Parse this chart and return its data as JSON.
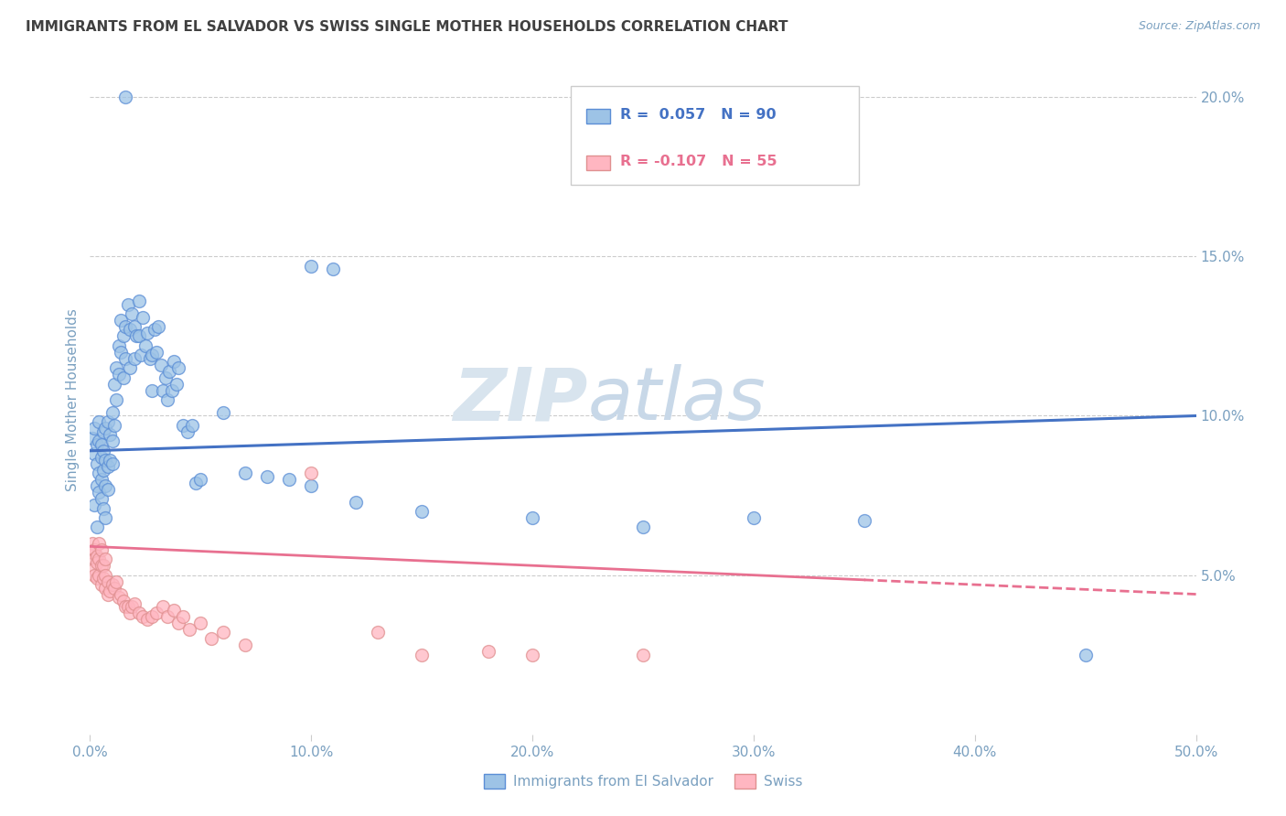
{
  "title": "IMMIGRANTS FROM EL SALVADOR VS SWISS SINGLE MOTHER HOUSEHOLDS CORRELATION CHART",
  "source": "Source: ZipAtlas.com",
  "ylabel": "Single Mother Households",
  "xlim": [
    0.0,
    0.5
  ],
  "ylim": [
    0.0,
    0.21
  ],
  "xticks": [
    0.0,
    0.1,
    0.2,
    0.3,
    0.4,
    0.5
  ],
  "xticklabels": [
    "0.0%",
    "10.0%",
    "20.0%",
    "30.0%",
    "40.0%",
    "50.0%"
  ],
  "yticks": [
    0.05,
    0.1,
    0.15,
    0.2
  ],
  "yticklabels": [
    "5.0%",
    "10.0%",
    "15.0%",
    "20.0%"
  ],
  "blue_R": 0.057,
  "blue_N": 90,
  "pink_R": -0.107,
  "pink_N": 55,
  "legend_label_blue": "Immigrants from El Salvador",
  "legend_label_pink": "Swiss",
  "watermark": "ZIPatlas",
  "blue_scatter": [
    [
      0.001,
      0.093
    ],
    [
      0.002,
      0.088
    ],
    [
      0.002,
      0.072
    ],
    [
      0.002,
      0.096
    ],
    [
      0.003,
      0.085
    ],
    [
      0.003,
      0.078
    ],
    [
      0.003,
      0.091
    ],
    [
      0.003,
      0.065
    ],
    [
      0.004,
      0.092
    ],
    [
      0.004,
      0.082
    ],
    [
      0.004,
      0.076
    ],
    [
      0.004,
      0.098
    ],
    [
      0.005,
      0.091
    ],
    [
      0.005,
      0.08
    ],
    [
      0.005,
      0.087
    ],
    [
      0.005,
      0.074
    ],
    [
      0.006,
      0.095
    ],
    [
      0.006,
      0.083
    ],
    [
      0.006,
      0.089
    ],
    [
      0.006,
      0.071
    ],
    [
      0.007,
      0.096
    ],
    [
      0.007,
      0.086
    ],
    [
      0.007,
      0.078
    ],
    [
      0.007,
      0.068
    ],
    [
      0.008,
      0.098
    ],
    [
      0.008,
      0.084
    ],
    [
      0.008,
      0.077
    ],
    [
      0.009,
      0.094
    ],
    [
      0.009,
      0.086
    ],
    [
      0.01,
      0.101
    ],
    [
      0.01,
      0.092
    ],
    [
      0.01,
      0.085
    ],
    [
      0.011,
      0.11
    ],
    [
      0.011,
      0.097
    ],
    [
      0.012,
      0.115
    ],
    [
      0.012,
      0.105
    ],
    [
      0.013,
      0.122
    ],
    [
      0.013,
      0.113
    ],
    [
      0.014,
      0.13
    ],
    [
      0.014,
      0.12
    ],
    [
      0.015,
      0.125
    ],
    [
      0.015,
      0.112
    ],
    [
      0.016,
      0.128
    ],
    [
      0.016,
      0.118
    ],
    [
      0.017,
      0.135
    ],
    [
      0.018,
      0.127
    ],
    [
      0.018,
      0.115
    ],
    [
      0.019,
      0.132
    ],
    [
      0.02,
      0.128
    ],
    [
      0.02,
      0.118
    ],
    [
      0.021,
      0.125
    ],
    [
      0.022,
      0.136
    ],
    [
      0.022,
      0.125
    ],
    [
      0.023,
      0.119
    ],
    [
      0.024,
      0.131
    ],
    [
      0.025,
      0.122
    ],
    [
      0.026,
      0.126
    ],
    [
      0.027,
      0.118
    ],
    [
      0.028,
      0.119
    ],
    [
      0.028,
      0.108
    ],
    [
      0.029,
      0.127
    ],
    [
      0.03,
      0.12
    ],
    [
      0.031,
      0.128
    ],
    [
      0.032,
      0.116
    ],
    [
      0.033,
      0.108
    ],
    [
      0.034,
      0.112
    ],
    [
      0.035,
      0.105
    ],
    [
      0.036,
      0.114
    ],
    [
      0.037,
      0.108
    ],
    [
      0.038,
      0.117
    ],
    [
      0.039,
      0.11
    ],
    [
      0.04,
      0.115
    ],
    [
      0.042,
      0.097
    ],
    [
      0.044,
      0.095
    ],
    [
      0.046,
      0.097
    ],
    [
      0.048,
      0.079
    ],
    [
      0.05,
      0.08
    ],
    [
      0.06,
      0.101
    ],
    [
      0.07,
      0.082
    ],
    [
      0.08,
      0.081
    ],
    [
      0.09,
      0.08
    ],
    [
      0.1,
      0.078
    ],
    [
      0.12,
      0.073
    ],
    [
      0.15,
      0.07
    ],
    [
      0.2,
      0.068
    ],
    [
      0.25,
      0.065
    ],
    [
      0.3,
      0.068
    ],
    [
      0.35,
      0.067
    ],
    [
      0.45,
      0.025
    ],
    [
      0.016,
      0.2
    ],
    [
      0.1,
      0.147
    ],
    [
      0.11,
      0.146
    ]
  ],
  "pink_scatter": [
    [
      0.001,
      0.06
    ],
    [
      0.001,
      0.057
    ],
    [
      0.002,
      0.058
    ],
    [
      0.002,
      0.055
    ],
    [
      0.002,
      0.052
    ],
    [
      0.002,
      0.05
    ],
    [
      0.003,
      0.056
    ],
    [
      0.003,
      0.054
    ],
    [
      0.003,
      0.049
    ],
    [
      0.004,
      0.06
    ],
    [
      0.004,
      0.055
    ],
    [
      0.004,
      0.05
    ],
    [
      0.005,
      0.058
    ],
    [
      0.005,
      0.053
    ],
    [
      0.005,
      0.047
    ],
    [
      0.006,
      0.049
    ],
    [
      0.006,
      0.053
    ],
    [
      0.007,
      0.055
    ],
    [
      0.007,
      0.05
    ],
    [
      0.007,
      0.046
    ],
    [
      0.008,
      0.048
    ],
    [
      0.008,
      0.044
    ],
    [
      0.009,
      0.045
    ],
    [
      0.01,
      0.047
    ],
    [
      0.011,
      0.046
    ],
    [
      0.012,
      0.048
    ],
    [
      0.013,
      0.043
    ],
    [
      0.014,
      0.044
    ],
    [
      0.015,
      0.042
    ],
    [
      0.016,
      0.04
    ],
    [
      0.017,
      0.04
    ],
    [
      0.018,
      0.038
    ],
    [
      0.019,
      0.04
    ],
    [
      0.02,
      0.041
    ],
    [
      0.022,
      0.038
    ],
    [
      0.024,
      0.037
    ],
    [
      0.026,
      0.036
    ],
    [
      0.028,
      0.037
    ],
    [
      0.03,
      0.038
    ],
    [
      0.033,
      0.04
    ],
    [
      0.035,
      0.037
    ],
    [
      0.038,
      0.039
    ],
    [
      0.04,
      0.035
    ],
    [
      0.042,
      0.037
    ],
    [
      0.045,
      0.033
    ],
    [
      0.05,
      0.035
    ],
    [
      0.055,
      0.03
    ],
    [
      0.06,
      0.032
    ],
    [
      0.07,
      0.028
    ],
    [
      0.1,
      0.082
    ],
    [
      0.13,
      0.032
    ],
    [
      0.15,
      0.025
    ],
    [
      0.18,
      0.026
    ],
    [
      0.2,
      0.025
    ],
    [
      0.25,
      0.025
    ]
  ],
  "blue_line_color": "#4472C4",
  "pink_line_color": "#E87090",
  "blue_scatter_color": "#9DC3E6",
  "pink_scatter_color": "#FFB6C1",
  "blue_edge_color": "#5B8ED6",
  "pink_edge_color": "#E09090",
  "grid_color": "#CCCCCC",
  "title_color": "#404040",
  "axis_color": "#7AA0C0",
  "watermark_color": "#DDE8F2"
}
